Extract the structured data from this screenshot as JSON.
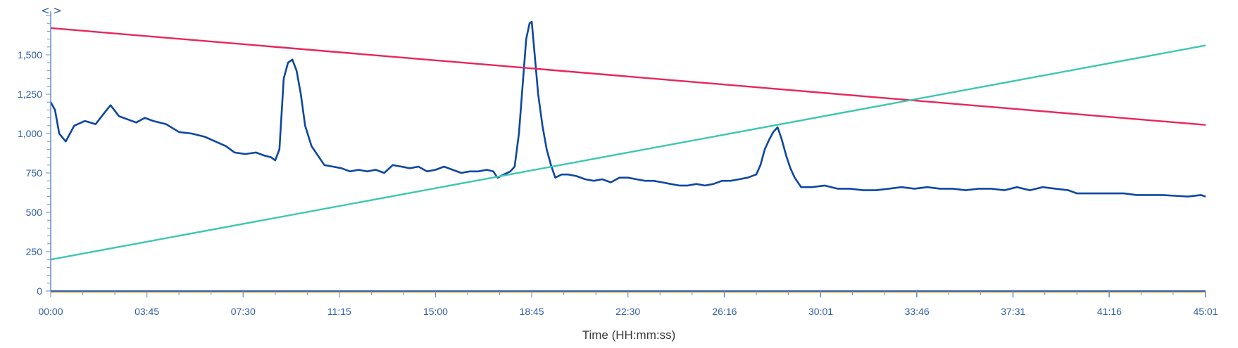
{
  "nav": {
    "label": "< >"
  },
  "chart_data": {
    "type": "line",
    "title": "",
    "xlabel": "Time (HH:mm:ss)",
    "ylabel": "",
    "xlim": [
      0,
      2701
    ],
    "ylim": [
      0,
      1750
    ],
    "x_ticks": [
      {
        "t": 0,
        "label": "00:00"
      },
      {
        "t": 225,
        "label": "03:45"
      },
      {
        "t": 450,
        "label": "07:30"
      },
      {
        "t": 675,
        "label": "11:15"
      },
      {
        "t": 900,
        "label": "15:00"
      },
      {
        "t": 1125,
        "label": "18:45"
      },
      {
        "t": 1350,
        "label": "22:30"
      },
      {
        "t": 1576,
        "label": "26:16"
      },
      {
        "t": 1801,
        "label": "30:01"
      },
      {
        "t": 2026,
        "label": "33:46"
      },
      {
        "t": 2251,
        "label": "37:31"
      },
      {
        "t": 2476,
        "label": "41:16"
      },
      {
        "t": 2701,
        "label": "45:01"
      }
    ],
    "y_ticks": [
      {
        "v": 0,
        "label": "0"
      },
      {
        "v": 250,
        "label": "250"
      },
      {
        "v": 500,
        "label": "500"
      },
      {
        "v": 750,
        "label": "750"
      },
      {
        "v": 1000,
        "label": "1,000"
      },
      {
        "v": 1250,
        "label": "1,250"
      },
      {
        "v": 1500,
        "label": "1,500"
      }
    ],
    "grid": false,
    "series": [
      {
        "color": "#0d47a1",
        "points": [
          [
            0,
            1200
          ],
          [
            10,
            1150
          ],
          [
            20,
            1000
          ],
          [
            35,
            950
          ],
          [
            55,
            1050
          ],
          [
            80,
            1080
          ],
          [
            105,
            1060
          ],
          [
            125,
            1130
          ],
          [
            140,
            1180
          ],
          [
            160,
            1110
          ],
          [
            180,
            1090
          ],
          [
            200,
            1070
          ],
          [
            220,
            1100
          ],
          [
            240,
            1080
          ],
          [
            270,
            1060
          ],
          [
            300,
            1010
          ],
          [
            330,
            1000
          ],
          [
            360,
            980
          ],
          [
            385,
            950
          ],
          [
            410,
            920
          ],
          [
            430,
            880
          ],
          [
            455,
            870
          ],
          [
            480,
            880
          ],
          [
            500,
            860
          ],
          [
            515,
            850
          ],
          [
            525,
            830
          ],
          [
            535,
            900
          ],
          [
            545,
            1350
          ],
          [
            555,
            1450
          ],
          [
            565,
            1470
          ],
          [
            575,
            1400
          ],
          [
            585,
            1250
          ],
          [
            595,
            1050
          ],
          [
            610,
            920
          ],
          [
            625,
            860
          ],
          [
            640,
            800
          ],
          [
            660,
            790
          ],
          [
            680,
            780
          ],
          [
            700,
            760
          ],
          [
            720,
            770
          ],
          [
            740,
            760
          ],
          [
            760,
            770
          ],
          [
            780,
            750
          ],
          [
            800,
            800
          ],
          [
            820,
            790
          ],
          [
            840,
            780
          ],
          [
            860,
            790
          ],
          [
            880,
            760
          ],
          [
            900,
            770
          ],
          [
            920,
            790
          ],
          [
            940,
            770
          ],
          [
            960,
            750
          ],
          [
            980,
            760
          ],
          [
            1000,
            760
          ],
          [
            1020,
            770
          ],
          [
            1035,
            760
          ],
          [
            1045,
            720
          ],
          [
            1060,
            740
          ],
          [
            1075,
            760
          ],
          [
            1085,
            790
          ],
          [
            1095,
            1000
          ],
          [
            1105,
            1350
          ],
          [
            1112,
            1600
          ],
          [
            1120,
            1700
          ],
          [
            1125,
            1710
          ],
          [
            1132,
            1500
          ],
          [
            1140,
            1250
          ],
          [
            1150,
            1050
          ],
          [
            1160,
            900
          ],
          [
            1170,
            800
          ],
          [
            1180,
            720
          ],
          [
            1195,
            740
          ],
          [
            1210,
            740
          ],
          [
            1230,
            730
          ],
          [
            1250,
            710
          ],
          [
            1270,
            700
          ],
          [
            1290,
            710
          ],
          [
            1310,
            690
          ],
          [
            1330,
            720
          ],
          [
            1350,
            720
          ],
          [
            1370,
            710
          ],
          [
            1390,
            700
          ],
          [
            1410,
            700
          ],
          [
            1430,
            690
          ],
          [
            1450,
            680
          ],
          [
            1470,
            670
          ],
          [
            1490,
            670
          ],
          [
            1510,
            680
          ],
          [
            1530,
            670
          ],
          [
            1550,
            680
          ],
          [
            1570,
            700
          ],
          [
            1590,
            700
          ],
          [
            1610,
            710
          ],
          [
            1630,
            720
          ],
          [
            1650,
            740
          ],
          [
            1660,
            800
          ],
          [
            1670,
            900
          ],
          [
            1680,
            960
          ],
          [
            1690,
            1010
          ],
          [
            1700,
            1040
          ],
          [
            1710,
            960
          ],
          [
            1720,
            860
          ],
          [
            1730,
            780
          ],
          [
            1740,
            720
          ],
          [
            1755,
            660
          ],
          [
            1780,
            660
          ],
          [
            1810,
            670
          ],
          [
            1840,
            650
          ],
          [
            1870,
            650
          ],
          [
            1900,
            640
          ],
          [
            1930,
            640
          ],
          [
            1960,
            650
          ],
          [
            1990,
            660
          ],
          [
            2020,
            650
          ],
          [
            2050,
            660
          ],
          [
            2080,
            650
          ],
          [
            2110,
            650
          ],
          [
            2140,
            640
          ],
          [
            2170,
            650
          ],
          [
            2200,
            650
          ],
          [
            2230,
            640
          ],
          [
            2260,
            660
          ],
          [
            2290,
            640
          ],
          [
            2320,
            660
          ],
          [
            2350,
            650
          ],
          [
            2380,
            640
          ],
          [
            2400,
            620
          ],
          [
            2420,
            620
          ],
          [
            2450,
            620
          ],
          [
            2480,
            620
          ],
          [
            2510,
            620
          ],
          [
            2540,
            610
          ],
          [
            2570,
            610
          ],
          [
            2600,
            610
          ],
          [
            2630,
            605
          ],
          [
            2660,
            600
          ],
          [
            2690,
            610
          ],
          [
            2701,
            600
          ]
        ]
      },
      {
        "color": "#e8265a",
        "points": [
          [
            0,
            1670
          ],
          [
            2701,
            1055
          ]
        ]
      },
      {
        "color": "#3ec7b0",
        "points": [
          [
            0,
            200
          ],
          [
            2701,
            1560
          ]
        ]
      }
    ]
  }
}
